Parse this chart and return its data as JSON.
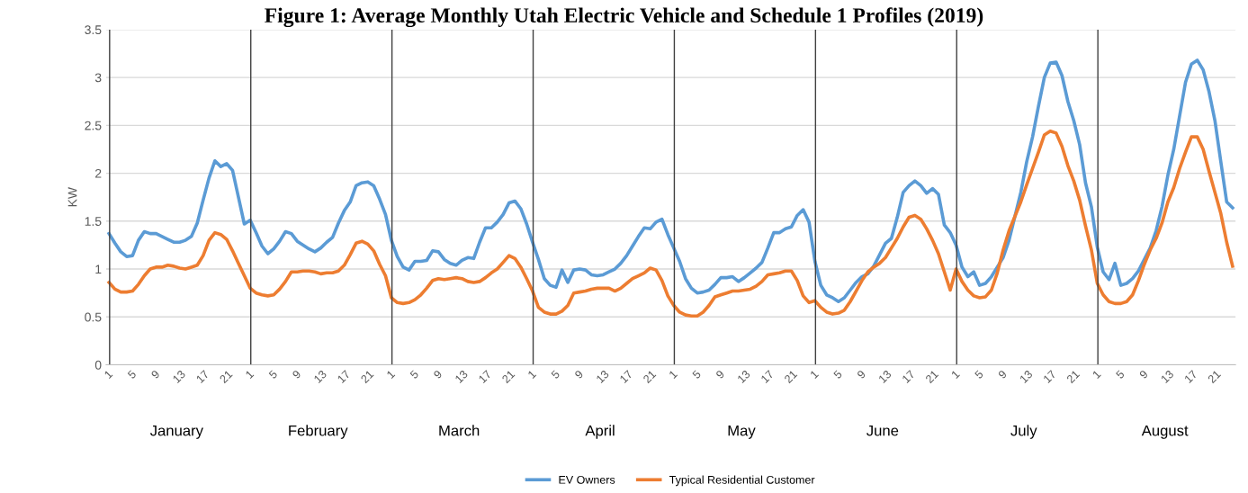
{
  "chart_data": {
    "type": "line",
    "title": "Figure 1: Average Monthly Utah Electric Vehicle and Schedule 1 Profiles (2019)",
    "ylabel": "KW",
    "categories": [
      "1",
      null,
      null,
      null,
      "5",
      null,
      null,
      null,
      "9",
      null,
      null,
      null,
      "13",
      null,
      null,
      null,
      "17",
      null,
      null,
      null,
      "21",
      null,
      null,
      null,
      "1",
      null,
      null,
      null,
      "5",
      null,
      null,
      null,
      "9",
      null,
      null,
      null,
      "13",
      null,
      null,
      null,
      "17",
      null,
      null,
      null,
      "21",
      null,
      null,
      null,
      "1",
      null,
      null,
      null,
      "5",
      null,
      null,
      null,
      "9",
      null,
      null,
      null,
      "13",
      null,
      null,
      null,
      "17",
      null,
      null,
      null,
      "21",
      null,
      null,
      null,
      "1",
      null,
      null,
      null,
      "5",
      null,
      null,
      null,
      "9",
      null,
      null,
      null,
      "13",
      null,
      null,
      null,
      "17",
      null,
      null,
      null,
      "21",
      null,
      null,
      null,
      "1",
      null,
      null,
      null,
      "5",
      null,
      null,
      null,
      "9",
      null,
      null,
      null,
      "13",
      null,
      null,
      null,
      "17",
      null,
      null,
      null,
      "21",
      null,
      null,
      null,
      "1",
      null,
      null,
      null,
      "5",
      null,
      null,
      null,
      "9",
      null,
      null,
      null,
      "13",
      null,
      null,
      null,
      "17",
      null,
      null,
      null,
      "21",
      null,
      null,
      null,
      "1",
      null,
      null,
      null,
      "5",
      null,
      null,
      null,
      "9",
      null,
      null,
      null,
      "13",
      null,
      null,
      null,
      "17",
      null,
      null,
      null,
      "21",
      null,
      null,
      null,
      "1",
      null,
      null,
      null,
      "5",
      null,
      null,
      null,
      "9",
      null,
      null,
      null,
      "13",
      null,
      null,
      null,
      "17",
      null,
      null,
      null,
      "21",
      null,
      null,
      null
    ],
    "series": [
      {
        "name": "EV Owners",
        "color": "#5b9bd5",
        "values": [
          1.37,
          1.27,
          1.18,
          1.13,
          1.14,
          1.3,
          1.39,
          1.37,
          1.37,
          1.34,
          1.31,
          1.28,
          1.28,
          1.3,
          1.34,
          1.48,
          1.72,
          1.95,
          2.13,
          2.07,
          2.1,
          2.03,
          1.75,
          1.47,
          1.51,
          1.38,
          1.24,
          1.16,
          1.21,
          1.29,
          1.39,
          1.37,
          1.29,
          1.25,
          1.21,
          1.18,
          1.22,
          1.28,
          1.33,
          1.48,
          1.61,
          1.7,
          1.87,
          1.9,
          1.91,
          1.87,
          1.73,
          1.57,
          1.3,
          1.13,
          1.02,
          0.99,
          1.08,
          1.08,
          1.09,
          1.19,
          1.18,
          1.1,
          1.06,
          1.04,
          1.09,
          1.12,
          1.11,
          1.28,
          1.43,
          1.43,
          1.49,
          1.57,
          1.69,
          1.71,
          1.63,
          1.47,
          1.28,
          1.1,
          0.9,
          0.83,
          0.81,
          0.99,
          0.86,
          0.99,
          1.0,
          0.99,
          0.94,
          0.93,
          0.94,
          0.97,
          1.0,
          1.06,
          1.14,
          1.24,
          1.34,
          1.43,
          1.42,
          1.49,
          1.52,
          1.36,
          1.22,
          1.08,
          0.9,
          0.8,
          0.75,
          0.76,
          0.78,
          0.84,
          0.91,
          0.91,
          0.92,
          0.87,
          0.91,
          0.96,
          1.01,
          1.07,
          1.22,
          1.38,
          1.38,
          1.42,
          1.44,
          1.56,
          1.62,
          1.49,
          1.08,
          0.83,
          0.73,
          0.7,
          0.66,
          0.7,
          0.78,
          0.86,
          0.92,
          0.95,
          1.03,
          1.15,
          1.27,
          1.32,
          1.54,
          1.8,
          1.87,
          1.92,
          1.87,
          1.79,
          1.84,
          1.78,
          1.46,
          1.38,
          1.25,
          1.02,
          0.92,
          0.97,
          0.83,
          0.85,
          0.92,
          1.02,
          1.12,
          1.3,
          1.55,
          1.8,
          2.12,
          2.38,
          2.7,
          3.0,
          3.15,
          3.16,
          3.02,
          2.75,
          2.55,
          2.3,
          1.9,
          1.65,
          1.23,
          0.97,
          0.89,
          1.06,
          0.83,
          0.85,
          0.9,
          0.98,
          1.1,
          1.22,
          1.4,
          1.65,
          1.98,
          2.25,
          2.6,
          2.95,
          3.14,
          3.18,
          3.08,
          2.85,
          2.55,
          2.12,
          1.7,
          1.64
        ]
      },
      {
        "name": "Typical Residential Customer",
        "color": "#ed7d31",
        "values": [
          0.86,
          0.79,
          0.76,
          0.76,
          0.77,
          0.84,
          0.93,
          1.0,
          1.02,
          1.02,
          1.04,
          1.03,
          1.01,
          1.0,
          1.02,
          1.04,
          1.14,
          1.3,
          1.38,
          1.36,
          1.31,
          1.19,
          1.06,
          0.93,
          0.8,
          0.75,
          0.73,
          0.72,
          0.73,
          0.79,
          0.87,
          0.97,
          0.97,
          0.98,
          0.98,
          0.97,
          0.95,
          0.96,
          0.96,
          0.98,
          1.04,
          1.15,
          1.27,
          1.29,
          1.26,
          1.19,
          1.05,
          0.93,
          0.7,
          0.65,
          0.64,
          0.65,
          0.68,
          0.73,
          0.8,
          0.88,
          0.9,
          0.89,
          0.9,
          0.91,
          0.9,
          0.87,
          0.86,
          0.87,
          0.91,
          0.96,
          1.0,
          1.07,
          1.14,
          1.11,
          1.02,
          0.9,
          0.77,
          0.6,
          0.55,
          0.53,
          0.53,
          0.56,
          0.62,
          0.75,
          0.76,
          0.77,
          0.79,
          0.8,
          0.8,
          0.8,
          0.77,
          0.8,
          0.85,
          0.9,
          0.93,
          0.96,
          1.01,
          0.99,
          0.88,
          0.72,
          0.62,
          0.55,
          0.52,
          0.51,
          0.51,
          0.55,
          0.62,
          0.71,
          0.73,
          0.75,
          0.77,
          0.77,
          0.78,
          0.79,
          0.82,
          0.87,
          0.94,
          0.95,
          0.96,
          0.98,
          0.98,
          0.88,
          0.72,
          0.65,
          0.67,
          0.6,
          0.55,
          0.53,
          0.54,
          0.57,
          0.66,
          0.77,
          0.88,
          0.97,
          1.02,
          1.06,
          1.12,
          1.22,
          1.32,
          1.44,
          1.54,
          1.56,
          1.52,
          1.42,
          1.3,
          1.16,
          0.97,
          0.78,
          1.0,
          0.87,
          0.78,
          0.72,
          0.7,
          0.71,
          0.78,
          0.96,
          1.2,
          1.4,
          1.55,
          1.7,
          1.88,
          2.05,
          2.22,
          2.4,
          2.44,
          2.42,
          2.28,
          2.08,
          1.92,
          1.72,
          1.45,
          1.2,
          0.85,
          0.73,
          0.66,
          0.64,
          0.64,
          0.66,
          0.73,
          0.88,
          1.05,
          1.2,
          1.32,
          1.48,
          1.7,
          1.85,
          2.05,
          2.22,
          2.38,
          2.38,
          2.25,
          2.02,
          1.8,
          1.58,
          1.28,
          1.03
        ]
      }
    ],
    "annotations": [
      "January",
      "February",
      "March",
      "April",
      "May",
      "June",
      "July",
      "August"
    ],
    "ylim": [
      0,
      3.5
    ],
    "yticks": [
      0,
      0.5,
      1,
      1.5,
      2,
      2.5,
      3,
      3.5
    ],
    "grid": "y",
    "legend": "bottom",
    "marker": "none",
    "line_style": "solid"
  }
}
